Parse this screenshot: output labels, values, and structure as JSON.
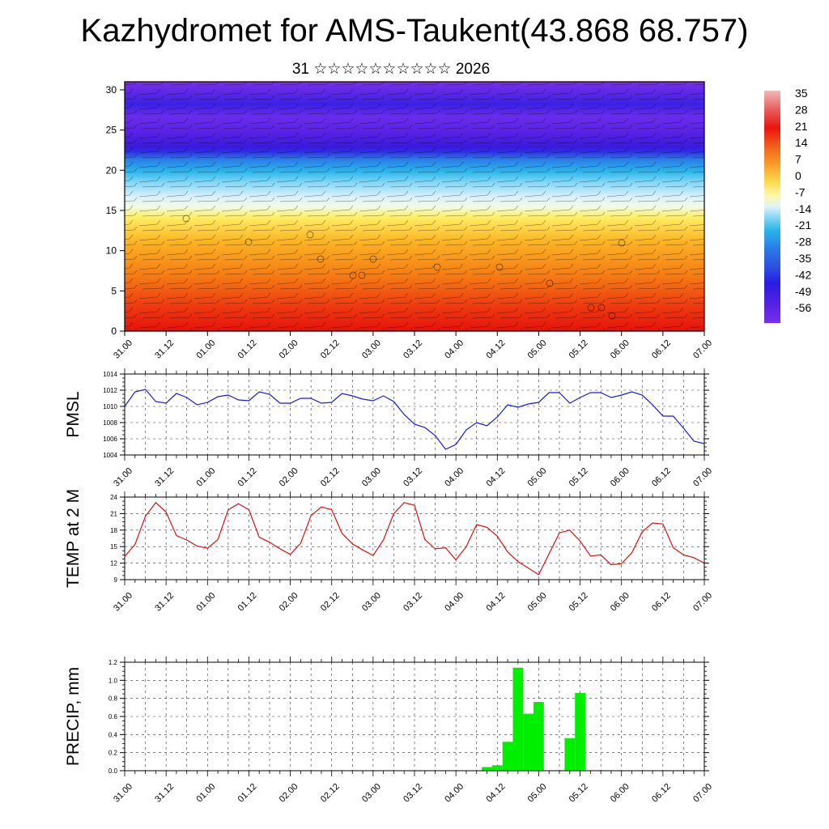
{
  "header": {
    "title": "Kazhydromet for AMS-Taukent(43.868 68.757)",
    "subtitle": "31 ☆☆☆☆☆☆☆☆☆☆ 2026"
  },
  "time_ticks": [
    "31.00",
    "31.12",
    "01.00",
    "01.12",
    "02.00",
    "02.12",
    "03.00",
    "03.12",
    "04.00",
    "04.12",
    "05.00",
    "05.12",
    "06.00",
    "06.12",
    "07.00"
  ],
  "chart_data": [
    {
      "type": "heatmap",
      "name": "vertical-section",
      "x_ticks": [
        "31.00",
        "31.12",
        "01.00",
        "01.12",
        "02.00",
        "02.12",
        "03.00",
        "03.12",
        "04.00",
        "04.12",
        "05.00",
        "05.12",
        "06.00",
        "06.12",
        "07.00"
      ],
      "y_ticks": [
        "0",
        "5",
        "10",
        "15",
        "20",
        "25",
        "30"
      ],
      "ylim": [
        0,
        31
      ],
      "colorbar_labels": [
        "35",
        "28",
        "21",
        "14",
        "7",
        "0",
        "-7",
        "-14",
        "-21",
        "-28",
        "-35",
        "-42",
        "-49",
        "-56"
      ],
      "colorbar_range": [
        -60,
        38
      ],
      "colors": {
        "red": "#e8140c",
        "orange": "#f57a14",
        "yellow": "#fff066",
        "light": "#dff3fa",
        "cyan": "#29b6ea",
        "blue": "#2a1ce0",
        "violet": "#7a2fe8"
      }
    },
    {
      "type": "line",
      "name": "pmsl",
      "ylabel": "PMSL",
      "ylim": [
        1004,
        1014
      ],
      "y_ticks": [
        "1004",
        "1006",
        "1008",
        "1010",
        "1012",
        "1014"
      ],
      "x_ticks": [
        "31.00",
        "31.12",
        "01.00",
        "01.12",
        "02.00",
        "02.12",
        "03.00",
        "03.12",
        "04.00",
        "04.12",
        "05.00",
        "05.12",
        "06.00",
        "06.12",
        "07.00"
      ],
      "color": "#1c1cd8",
      "x": [
        0,
        3,
        6,
        9,
        12,
        15,
        18,
        21,
        24,
        27,
        30,
        33,
        36,
        39,
        42,
        45,
        48,
        51,
        54,
        57,
        60,
        63,
        66,
        69,
        72,
        75,
        78,
        81,
        84,
        87,
        90,
        93,
        96,
        99,
        102,
        105,
        108,
        111,
        114,
        117,
        120,
        123,
        126,
        129,
        132,
        135,
        138,
        141,
        144,
        147,
        150,
        153,
        156,
        159,
        162,
        165,
        168
      ],
      "values": [
        1010.0,
        1011.8,
        1012.1,
        1010.6,
        1010.4,
        1011.6,
        1011.1,
        1010.2,
        1010.5,
        1011.2,
        1011.4,
        1010.8,
        1010.7,
        1011.8,
        1011.5,
        1010.4,
        1010.4,
        1011.0,
        1011.0,
        1010.4,
        1010.5,
        1011.6,
        1011.3,
        1010.9,
        1010.7,
        1011.3,
        1010.6,
        1009.0,
        1007.8,
        1007.4,
        1006.4,
        1004.7,
        1005.3,
        1007.1,
        1008.0,
        1007.6,
        1008.7,
        1010.2,
        1009.9,
        1010.3,
        1010.5,
        1011.7,
        1011.7,
        1010.4,
        1011.1,
        1011.7,
        1011.7,
        1011.1,
        1011.4,
        1011.8,
        1011.4,
        1010.2,
        1008.8,
        1008.8,
        1007.3,
        1005.7,
        1005.4
      ]
    },
    {
      "type": "line",
      "name": "temp-2m",
      "ylabel": "TEMP at 2 M",
      "ylim": [
        9,
        24
      ],
      "y_ticks": [
        "9",
        "12",
        "15",
        "18",
        "21",
        "24"
      ],
      "x_ticks": [
        "31.00",
        "31.12",
        "01.00",
        "01.12",
        "02.00",
        "02.12",
        "03.00",
        "03.12",
        "04.00",
        "04.12",
        "05.00",
        "05.12",
        "06.00",
        "06.12",
        "07.00"
      ],
      "color": "#e01010",
      "x": [
        0,
        3,
        6,
        9,
        12,
        15,
        18,
        21,
        24,
        27,
        30,
        33,
        36,
        39,
        42,
        45,
        48,
        51,
        54,
        57,
        60,
        63,
        66,
        69,
        72,
        75,
        78,
        81,
        84,
        87,
        90,
        93,
        96,
        99,
        102,
        105,
        108,
        111,
        114,
        117,
        120,
        123,
        126,
        129,
        132,
        135,
        138,
        141,
        144,
        147,
        150,
        153,
        156,
        159,
        162,
        165,
        168
      ],
      "values": [
        13.2,
        15.4,
        20.5,
        23.0,
        21.3,
        17.0,
        16.2,
        15.1,
        14.7,
        16.3,
        21.7,
        22.8,
        21.7,
        16.7,
        15.8,
        14.6,
        13.6,
        15.6,
        20.6,
        22.2,
        21.7,
        17.4,
        15.5,
        14.4,
        13.4,
        16.2,
        21.0,
        23.0,
        22.5,
        16.3,
        14.6,
        14.8,
        12.6,
        15.0,
        19.0,
        18.5,
        16.9,
        14.0,
        12.3,
        11.1,
        9.9,
        13.7,
        17.5,
        18.0,
        16.0,
        13.3,
        13.5,
        11.7,
        11.9,
        13.9,
        17.7,
        19.3,
        19.1,
        14.8,
        13.5,
        13.0,
        12.0
      ]
    },
    {
      "type": "bar",
      "name": "precip",
      "ylabel": "PRECIP, mm",
      "ylim": [
        0,
        1.2
      ],
      "y_ticks": [
        "0.0",
        "0.2",
        "0.4",
        "0.6",
        "0.8",
        "1.0",
        "1.2"
      ],
      "x_ticks": [
        "31.00",
        "31.12",
        "01.00",
        "01.12",
        "02.00",
        "02.12",
        "03.00",
        "03.12",
        "04.00",
        "04.12",
        "05.00",
        "05.12",
        "06.00",
        "06.12",
        "07.00"
      ],
      "color": "#00ee00",
      "bars": [
        {
          "x": 105,
          "v": 0.04
        },
        {
          "x": 108,
          "v": 0.06
        },
        {
          "x": 111,
          "v": 0.32
        },
        {
          "x": 114,
          "v": 1.14
        },
        {
          "x": 117,
          "v": 0.63
        },
        {
          "x": 120,
          "v": 0.76
        },
        {
          "x": 129,
          "v": 0.36
        },
        {
          "x": 132,
          "v": 0.86
        }
      ]
    }
  ]
}
